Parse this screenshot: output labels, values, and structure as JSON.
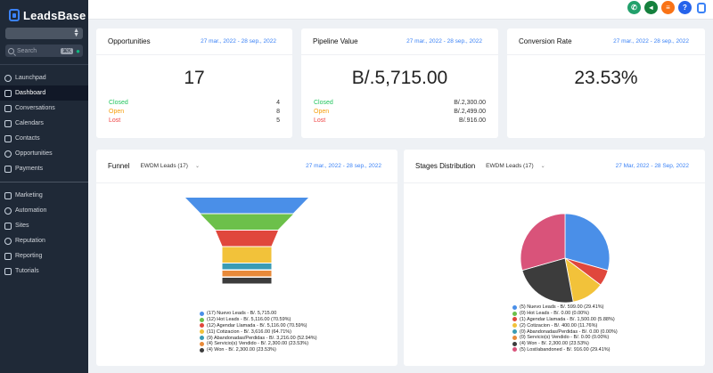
{
  "app": {
    "name": "LeadsBase"
  },
  "sidebar": {
    "search_label": "Search",
    "search_shortcut": "⌘K",
    "items": [
      {
        "label": "Launchpad"
      },
      {
        "label": "Dashboard"
      },
      {
        "label": "Conversations"
      },
      {
        "label": "Calendars"
      },
      {
        "label": "Contacts"
      },
      {
        "label": "Opportunities"
      },
      {
        "label": "Payments"
      },
      {
        "label": "Marketing"
      },
      {
        "label": "Automation"
      },
      {
        "label": "Sites"
      },
      {
        "label": "Reputation"
      },
      {
        "label": "Reporting"
      },
      {
        "label": "Tutorials"
      }
    ]
  },
  "topbar": {
    "icons": [
      "phone-icon",
      "megaphone-icon",
      "list-icon",
      "help-icon",
      "brand-icon"
    ]
  },
  "cards": {
    "opportunities": {
      "title": "Opportunities",
      "date": "27 mar., 2022 - 28 sep., 2022",
      "value": "17",
      "rows": [
        {
          "label": "Closed",
          "value": "4"
        },
        {
          "label": "Open",
          "value": "8"
        },
        {
          "label": "Lost",
          "value": "5"
        }
      ]
    },
    "pipeline": {
      "title": "Pipeline Value",
      "date": "27 mar., 2022 - 28 sep., 2022",
      "value": "B/.5,715.00",
      "rows": [
        {
          "label": "Closed",
          "value": "B/.2,300.00"
        },
        {
          "label": "Open",
          "value": "B/.2,499.00"
        },
        {
          "label": "Lost",
          "value": "B/.916.00"
        }
      ]
    },
    "conversion": {
      "title": "Conversion Rate",
      "date": "27 mar., 2022 - 28 sep., 2022",
      "value": "23.53%"
    },
    "funnel": {
      "title": "Funnel",
      "select": "EWDM Leads (17)",
      "date": "27 mar., 2022 - 28 sep., 2022",
      "legend": [
        {
          "label": "(17) Nuevo Leads - B/. 5,715.00",
          "color": "#4a8fe8",
          "share": 1.0
        },
        {
          "label": "(12) Hot Leads - B/. 5,116.00 (70.59%)",
          "color": "#6cc04a",
          "share": 0.7059
        },
        {
          "label": "(12) Agendar Llamada - B/. 5,116.00 (70.59%)",
          "color": "#e0473c",
          "share": 0.7059
        },
        {
          "label": "(11) Cotizacion - B/. 3,616.00 (64.71%)",
          "color": "#f2c23a",
          "share": 0.6471
        },
        {
          "label": "(9) Abandonadas/Perdidas - B/. 3,216.00 (52.94%)",
          "color": "#3a9bb5",
          "share": 0.5294
        },
        {
          "label": "(4) Servicio(s) Vendido - B/. 2,300.00 (23.53%)",
          "color": "#e88a3a",
          "share": 0.2353
        },
        {
          "label": "(4) Won - B/. 2,300.00 (23.53%)",
          "color": "#3c3c3c",
          "share": 0.2353
        }
      ]
    },
    "stages": {
      "title": "Stages Distribution",
      "select": "EWDM Leads (17)",
      "date": "27 Mar, 2022 - 28 Sep, 2022",
      "legend": [
        {
          "label": "(5) Nuevo Leads - B/. 599.00 (29.41%)",
          "color": "#4a8fe8",
          "pct": 29.41
        },
        {
          "label": "(0) Hot Leads - B/. 0.00 (0.00%)",
          "color": "#6cc04a",
          "pct": 0
        },
        {
          "label": "(1) Agendar Llamada - B/. 1,500.00 (5.88%)",
          "color": "#e0473c",
          "pct": 5.88
        },
        {
          "label": "(2) Cotizacion - B/. 400.00 (11.76%)",
          "color": "#f2c23a",
          "pct": 11.76
        },
        {
          "label": "(0) Abandonadas/Perdidas - B/. 0.00 (0.00%)",
          "color": "#3a9bb5",
          "pct": 0
        },
        {
          "label": "(0) Servicio(s) Vendido - B/. 0.00 (0.00%)",
          "color": "#e88a3a",
          "pct": 0
        },
        {
          "label": "(4) Won - B/. 2,300.00 (23.53%)",
          "color": "#3c3c3c",
          "pct": 23.53
        },
        {
          "label": "(5) Lost/abandoned - B/. 916.00 (29.41%)",
          "color": "#d9537a",
          "pct": 29.41
        }
      ]
    }
  }
}
